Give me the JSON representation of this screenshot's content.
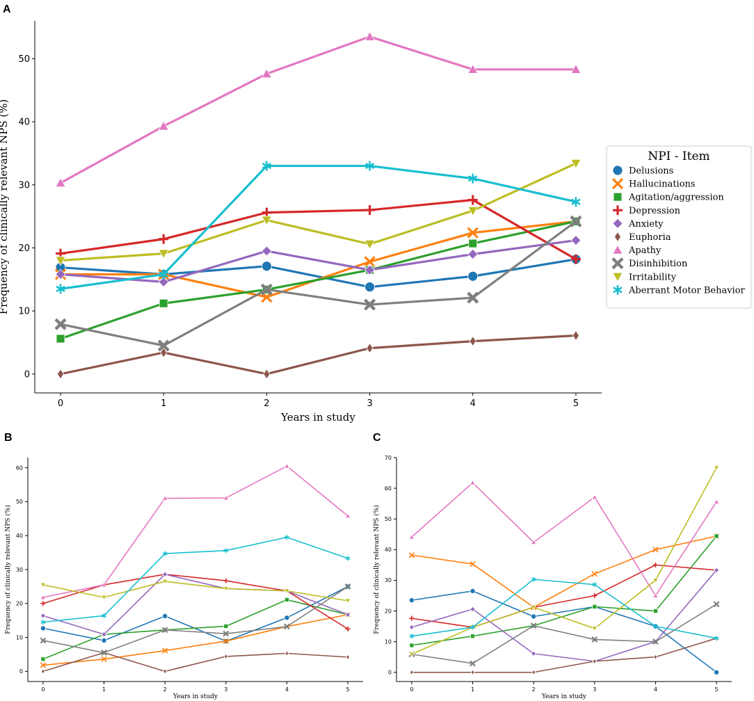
{
  "panels": {
    "A": "A",
    "B": "B",
    "C": "C"
  },
  "legend": {
    "title": "NPI - Item"
  },
  "series_styles": [
    {
      "name": "Delusions",
      "color": "#1f77b4",
      "marker": "circle"
    },
    {
      "name": "Hallucinations",
      "color": "#ff7f0e",
      "marker": "x"
    },
    {
      "name": "Agitation/aggression",
      "color": "#2ca02c",
      "marker": "square"
    },
    {
      "name": "Depression",
      "color": "#d62728",
      "marker": "plus"
    },
    {
      "name": "Anxiety",
      "color": "#9467bd",
      "marker": "diamond"
    },
    {
      "name": "Euphoria",
      "color": "#8c564b",
      "marker": "thin-diamond"
    },
    {
      "name": "Apathy",
      "color": "#e377c2",
      "marker": "triangle-up"
    },
    {
      "name": "Disinhibition",
      "color": "#7f7f7f",
      "marker": "star-x"
    },
    {
      "name": "Irritability",
      "color": "#bcbd22",
      "marker": "triangle-down"
    },
    {
      "name": "Aberrant Motor Behavior",
      "color": "#17becf",
      "marker": "asterisk"
    }
  ],
  "chart_data": [
    {
      "id": "A",
      "type": "line",
      "xlabel": "Years in study",
      "ylabel": "Frequency of clinically relevant NPS (%)",
      "x": [
        0,
        1,
        2,
        3,
        4,
        5
      ],
      "xlim": [
        -0.25,
        5.25
      ],
      "ylim": [
        -3,
        56
      ],
      "yticks": [
        0,
        10,
        20,
        30,
        40,
        50
      ],
      "legend_position": "right",
      "series": [
        {
          "name": "Delusions",
          "values": [
            16.9,
            15.8,
            17.1,
            13.8,
            15.5,
            18.2
          ]
        },
        {
          "name": "Hallucinations",
          "values": [
            15.8,
            15.8,
            12.2,
            17.8,
            22.4,
            24.2
          ]
        },
        {
          "name": "Agitation/aggression",
          "values": [
            5.6,
            11.2,
            13.4,
            16.5,
            20.7,
            24.2
          ]
        },
        {
          "name": "Depression",
          "values": [
            19.1,
            21.4,
            25.6,
            26.0,
            27.6,
            18.2
          ]
        },
        {
          "name": "Anxiety",
          "values": [
            15.8,
            14.6,
            19.5,
            16.5,
            19.0,
            21.2
          ]
        },
        {
          "name": "Euphoria",
          "values": [
            0.0,
            3.4,
            0.0,
            4.1,
            5.2,
            6.1
          ]
        },
        {
          "name": "Apathy",
          "values": [
            30.3,
            39.3,
            47.6,
            53.5,
            48.3,
            48.3
          ]
        },
        {
          "name": "Disinhibition",
          "values": [
            7.9,
            4.5,
            13.4,
            11.0,
            12.1,
            24.2
          ]
        },
        {
          "name": "Irritability",
          "values": [
            18.0,
            19.1,
            24.4,
            20.6,
            25.9,
            33.4
          ]
        },
        {
          "name": "Aberrant Motor Behavior",
          "values": [
            13.5,
            15.8,
            33.0,
            33.0,
            31.0,
            27.3
          ]
        }
      ]
    },
    {
      "id": "B",
      "type": "line",
      "xlabel": "Years in study",
      "ylabel": "Frequency of clinically relevant NPS (%)",
      "x": [
        0,
        1,
        2,
        3,
        4,
        5
      ],
      "xlim": [
        -0.25,
        5.25
      ],
      "ylim": [
        -3,
        63
      ],
      "yticks": [
        0,
        10,
        20,
        30,
        40,
        50,
        60
      ],
      "series": [
        {
          "name": "Delusions",
          "values": [
            12.7,
            9.1,
            16.3,
            8.9,
            15.8,
            25.0
          ]
        },
        {
          "name": "Hallucinations",
          "values": [
            1.8,
            3.6,
            6.1,
            8.9,
            13.2,
            16.7
          ]
        },
        {
          "name": "Agitation/aggression",
          "values": [
            3.6,
            10.9,
            12.2,
            13.3,
            21.1,
            16.7
          ]
        },
        {
          "name": "Depression",
          "values": [
            20.0,
            25.5,
            28.6,
            26.7,
            23.7,
            12.5
          ]
        },
        {
          "name": "Anxiety",
          "values": [
            16.4,
            10.9,
            28.6,
            24.4,
            23.7,
            16.7
          ]
        },
        {
          "name": "Euphoria",
          "values": [
            0.0,
            5.5,
            0.0,
            4.4,
            5.3,
            4.2
          ]
        },
        {
          "name": "Apathy",
          "values": [
            21.8,
            25.5,
            51.0,
            51.1,
            60.5,
            45.8
          ]
        },
        {
          "name": "Disinhibition",
          "values": [
            9.1,
            5.5,
            12.2,
            11.1,
            13.2,
            25.0
          ]
        },
        {
          "name": "Irritability",
          "values": [
            25.5,
            21.8,
            26.5,
            24.4,
            23.7,
            20.8
          ]
        },
        {
          "name": "Aberrant Motor Behavior",
          "values": [
            14.5,
            16.4,
            34.7,
            35.6,
            39.5,
            33.3
          ]
        }
      ]
    },
    {
      "id": "C",
      "type": "line",
      "xlabel": "Years in study",
      "ylabel": "Frequency of clinically relevant NPS (%)",
      "x": [
        0,
        1,
        2,
        3,
        4,
        5
      ],
      "xlim": [
        -0.25,
        5.25
      ],
      "ylim": [
        -3,
        70
      ],
      "yticks": [
        0,
        10,
        20,
        30,
        40,
        50,
        60,
        70
      ],
      "series": [
        {
          "name": "Delusions",
          "values": [
            23.5,
            26.5,
            18.2,
            21.4,
            15.0,
            0.0
          ]
        },
        {
          "name": "Hallucinations",
          "values": [
            38.2,
            35.3,
            21.2,
            32.1,
            40.0,
            44.4
          ]
        },
        {
          "name": "Agitation/aggression",
          "values": [
            8.8,
            11.8,
            15.2,
            21.4,
            20.0,
            44.4
          ]
        },
        {
          "name": "Depression",
          "values": [
            17.6,
            14.7,
            21.2,
            25.0,
            35.0,
            33.3
          ]
        },
        {
          "name": "Anxiety",
          "values": [
            14.7,
            20.6,
            6.1,
            3.6,
            10.0,
            33.3
          ]
        },
        {
          "name": "Euphoria",
          "values": [
            0.0,
            0.0,
            0.0,
            3.6,
            5.0,
            11.1
          ]
        },
        {
          "name": "Apathy",
          "values": [
            44.1,
            61.8,
            42.4,
            57.1,
            25.0,
            55.6
          ]
        },
        {
          "name": "Disinhibition",
          "values": [
            5.9,
            2.9,
            15.2,
            10.7,
            10.0,
            22.2
          ]
        },
        {
          "name": "Irritability",
          "values": [
            5.9,
            14.7,
            21.2,
            14.3,
            30.0,
            66.7
          ]
        },
        {
          "name": "Aberrant Motor Behavior",
          "values": [
            11.8,
            14.7,
            30.3,
            28.6,
            15.0,
            11.1
          ]
        }
      ]
    }
  ]
}
